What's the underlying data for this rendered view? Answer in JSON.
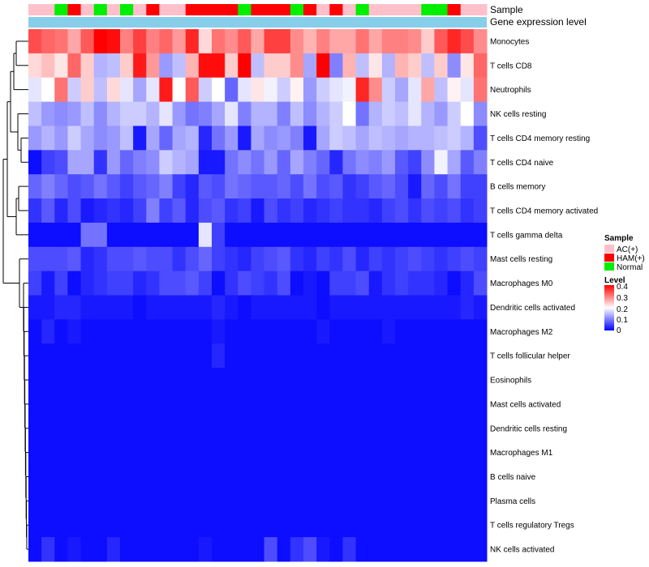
{
  "chart_data": {
    "type": "heatmap",
    "title": "",
    "annotation_labels": {
      "sample": "Sample",
      "gene": "Gene expression level"
    },
    "colors": {
      "low": "#0000ff",
      "mid": "#ffffff",
      "high": "#ff0000",
      "AC(+)": "#ffc0cb",
      "HAM(+)": "#ff0000",
      "Normal": "#00ee00",
      "gene_bar": "#87ceeb",
      "dendrogram": "#000000"
    },
    "legend": {
      "sample_title": "Sample",
      "sample_entries": [
        "AC(+)",
        "HAM(+)",
        "Normal"
      ],
      "level_title": "Level",
      "level_ticks": [
        "0.4",
        "0.3",
        "0.2",
        "0.1",
        "0"
      ],
      "level_range": [
        0,
        0.4
      ]
    },
    "rows": [
      "Monocytes",
      "T cells CD8",
      "Neutrophils",
      "NK cells resting",
      "T cells CD4 memory resting",
      "T cells CD4 naive",
      "B cells memory",
      "T cells CD4 memory activated",
      "T cells gamma delta",
      "Mast cells resting",
      "Macrophages M0",
      "Dendritic cells activated",
      "Macrophages M2",
      "T cells follicular helper",
      "Eosinophils",
      "Mast cells activated",
      "Dendritic cells resting",
      "Macrophages M1",
      "B cells naive",
      "Plasma cells",
      "T cells regulatory  Tregs",
      "NK cells activated"
    ],
    "samples": [
      "AC(+)",
      "AC(+)",
      "Normal",
      "HAM(+)",
      "AC(+)",
      "Normal",
      "AC(+)",
      "Normal",
      "AC(+)",
      "HAM(+)",
      "AC(+)",
      "AC(+)",
      "HAM(+)",
      "HAM(+)",
      "HAM(+)",
      "HAM(+)",
      "Normal",
      "HAM(+)",
      "HAM(+)",
      "HAM(+)",
      "Normal",
      "HAM(+)",
      "AC(+)",
      "HAM(+)",
      "AC(+)",
      "Normal",
      "AC(+)",
      "AC(+)",
      "AC(+)",
      "AC(+)",
      "Normal",
      "Normal",
      "HAM(+)",
      "AC(+)",
      "AC(+)"
    ],
    "values": [
      [
        0.34,
        0.32,
        0.31,
        0.27,
        0.33,
        0.4,
        0.39,
        0.3,
        0.35,
        0.3,
        0.32,
        0.28,
        0.37,
        0.23,
        0.31,
        0.29,
        0.33,
        0.27,
        0.35,
        0.35,
        0.29,
        0.26,
        0.3,
        0.27,
        0.27,
        0.31,
        0.27,
        0.3,
        0.3,
        0.29,
        0.24,
        0.33,
        0.37,
        0.34,
        0.29
      ],
      [
        0.23,
        0.25,
        0.22,
        0.32,
        0.24,
        0.14,
        0.15,
        0.24,
        0.38,
        0.28,
        0.12,
        0.15,
        0.26,
        0.39,
        0.39,
        0.24,
        0.4,
        0.15,
        0.24,
        0.24,
        0.29,
        0.13,
        0.4,
        0.1,
        0.26,
        0.15,
        0.22,
        0.14,
        0.26,
        0.24,
        0.15,
        0.24,
        0.11,
        0.22,
        0.32
      ],
      [
        0.18,
        0.2,
        0.31,
        0.16,
        0.24,
        0.15,
        0.23,
        0.18,
        0.13,
        0.18,
        0.38,
        0.2,
        0.33,
        0.16,
        0.2,
        0.08,
        0.18,
        0.22,
        0.19,
        0.16,
        0.21,
        0.12,
        0.16,
        0.18,
        0.19,
        0.37,
        0.29,
        0.16,
        0.13,
        0.18,
        0.27,
        0.15,
        0.21,
        0.18,
        0.31
      ],
      [
        0.15,
        0.12,
        0.11,
        0.12,
        0.15,
        0.11,
        0.14,
        0.16,
        0.16,
        0.14,
        0.18,
        0.12,
        0.09,
        0.1,
        0.13,
        0.18,
        0.1,
        0.14,
        0.14,
        0.1,
        0.15,
        0.11,
        0.14,
        0.16,
        0.2,
        0.09,
        0.14,
        0.16,
        0.15,
        0.18,
        0.14,
        0.12,
        0.16,
        0.2,
        0.11
      ],
      [
        0.12,
        0.14,
        0.12,
        0.16,
        0.13,
        0.11,
        0.12,
        0.15,
        0.02,
        0.13,
        0.08,
        0.13,
        0.14,
        0.03,
        0.09,
        0.12,
        0.02,
        0.13,
        0.11,
        0.12,
        0.1,
        0.02,
        0.13,
        0.16,
        0.15,
        0.13,
        0.15,
        0.14,
        0.13,
        0.14,
        0.14,
        0.15,
        0.16,
        0.14,
        0.06
      ],
      [
        0.01,
        0.05,
        0.06,
        0.13,
        0.13,
        0.04,
        0.12,
        0.08,
        0.1,
        0.11,
        0.16,
        0.14,
        0.13,
        0.02,
        0.02,
        0.09,
        0.11,
        0.09,
        0.12,
        0.08,
        0.13,
        0.1,
        0.08,
        0.03,
        0.09,
        0.11,
        0.1,
        0.12,
        0.07,
        0.05,
        0.11,
        0.19,
        0.13,
        0.07,
        0.1
      ],
      [
        0.08,
        0.1,
        0.08,
        0.06,
        0.07,
        0.09,
        0.07,
        0.05,
        0.07,
        0.08,
        0.1,
        0.05,
        0.03,
        0.07,
        0.06,
        0.09,
        0.08,
        0.07,
        0.07,
        0.08,
        0.06,
        0.09,
        0.06,
        0.07,
        0.04,
        0.05,
        0.07,
        0.08,
        0.06,
        0.02,
        0.08,
        0.06,
        0.09,
        0.05,
        0.05
      ],
      [
        0.04,
        0.07,
        0.03,
        0.06,
        0.02,
        0.03,
        0.04,
        0.03,
        0.05,
        0.1,
        0.05,
        0.07,
        0.03,
        0.06,
        0.07,
        0.04,
        0.05,
        0.02,
        0.06,
        0.04,
        0.05,
        0.03,
        0.04,
        0.05,
        0.04,
        0.04,
        0.03,
        0.05,
        0.06,
        0.04,
        0.06,
        0.05,
        0.06,
        0.04,
        0.05
      ],
      [
        0.01,
        0.01,
        0.01,
        0.01,
        0.09,
        0.09,
        0.01,
        0.01,
        0.01,
        0.01,
        0.01,
        0.01,
        0.01,
        0.18,
        0.05,
        0.01,
        0.01,
        0.01,
        0.01,
        0.01,
        0.01,
        0.01,
        0.01,
        0.01,
        0.01,
        0.01,
        0.01,
        0.01,
        0.01,
        0.01,
        0.01,
        0.01,
        0.01,
        0.01,
        0.01
      ],
      [
        0.06,
        0.06,
        0.06,
        0.07,
        0.03,
        0.04,
        0.06,
        0.06,
        0.07,
        0.06,
        0.06,
        0.04,
        0.06,
        0.08,
        0.05,
        0.04,
        0.03,
        0.05,
        0.06,
        0.07,
        0.04,
        0.03,
        0.05,
        0.04,
        0.06,
        0.03,
        0.05,
        0.04,
        0.05,
        0.06,
        0.05,
        0.04,
        0.05,
        0.06,
        0.05
      ],
      [
        0.05,
        0.02,
        0.05,
        0.01,
        0.03,
        0.04,
        0.05,
        0.05,
        0.03,
        0.04,
        0.06,
        0.06,
        0.07,
        0.05,
        0.01,
        0.04,
        0.06,
        0.05,
        0.04,
        0.06,
        0.01,
        0.02,
        0.01,
        0.05,
        0.05,
        0.06,
        0.02,
        0.04,
        0.05,
        0.04,
        0.04,
        0.03,
        0.01,
        0.03,
        0.06
      ],
      [
        0.02,
        0.02,
        0.03,
        0.03,
        0.02,
        0.02,
        0.02,
        0.02,
        0.01,
        0.02,
        0.02,
        0.02,
        0.02,
        0.02,
        0.03,
        0.02,
        0.01,
        0.02,
        0.02,
        0.02,
        0.02,
        0.02,
        0.01,
        0.02,
        0.02,
        0.02,
        0.02,
        0.02,
        0.02,
        0.02,
        0.02,
        0.02,
        0.02,
        0.03,
        0.02
      ],
      [
        0.01,
        0.03,
        0.01,
        0.02,
        0.01,
        0.01,
        0.01,
        0.01,
        0.01,
        0.01,
        0.01,
        0.01,
        0.01,
        0.01,
        0.02,
        0.01,
        0.01,
        0.01,
        0.01,
        0.01,
        0.01,
        0.01,
        0.02,
        0.01,
        0.01,
        0.01,
        0.01,
        0.02,
        0.01,
        0.01,
        0.01,
        0.01,
        0.01,
        0.01,
        0.01
      ],
      [
        0.01,
        0.01,
        0.01,
        0.01,
        0.01,
        0.01,
        0.01,
        0.01,
        0.01,
        0.01,
        0.01,
        0.01,
        0.01,
        0.01,
        0.03,
        0.01,
        0.01,
        0.01,
        0.01,
        0.01,
        0.01,
        0.01,
        0.01,
        0.01,
        0.01,
        0.01,
        0.01,
        0.01,
        0.01,
        0.01,
        0.01,
        0.01,
        0.01,
        0.01,
        0.01
      ],
      [
        0.01,
        0.01,
        0.01,
        0.01,
        0.01,
        0.01,
        0.01,
        0.01,
        0.01,
        0.01,
        0.01,
        0.01,
        0.01,
        0.01,
        0.01,
        0.01,
        0.01,
        0.01,
        0.01,
        0.01,
        0.01,
        0.01,
        0.01,
        0.01,
        0.01,
        0.01,
        0.01,
        0.01,
        0.01,
        0.01,
        0.01,
        0.01,
        0.01,
        0.01,
        0.01
      ],
      [
        0.01,
        0.01,
        0.01,
        0.01,
        0.01,
        0.01,
        0.01,
        0.01,
        0.01,
        0.01,
        0.01,
        0.01,
        0.01,
        0.01,
        0.01,
        0.01,
        0.01,
        0.01,
        0.01,
        0.01,
        0.01,
        0.01,
        0.01,
        0.01,
        0.01,
        0.01,
        0.01,
        0.01,
        0.01,
        0.01,
        0.01,
        0.01,
        0.01,
        0.01,
        0.01
      ],
      [
        0.01,
        0.01,
        0.01,
        0.01,
        0.01,
        0.01,
        0.01,
        0.01,
        0.01,
        0.01,
        0.01,
        0.01,
        0.01,
        0.01,
        0.01,
        0.01,
        0.01,
        0.01,
        0.01,
        0.01,
        0.01,
        0.01,
        0.01,
        0.01,
        0.01,
        0.01,
        0.01,
        0.01,
        0.01,
        0.01,
        0.01,
        0.01,
        0.01,
        0.01,
        0.01
      ],
      [
        0.01,
        0.01,
        0.01,
        0.01,
        0.01,
        0.01,
        0.01,
        0.01,
        0.01,
        0.01,
        0.01,
        0.01,
        0.01,
        0.01,
        0.01,
        0.01,
        0.01,
        0.01,
        0.01,
        0.01,
        0.01,
        0.01,
        0.01,
        0.01,
        0.01,
        0.01,
        0.01,
        0.01,
        0.01,
        0.01,
        0.01,
        0.01,
        0.01,
        0.01,
        0.01
      ],
      [
        0.01,
        0.01,
        0.01,
        0.01,
        0.01,
        0.01,
        0.01,
        0.01,
        0.01,
        0.01,
        0.01,
        0.01,
        0.01,
        0.01,
        0.01,
        0.01,
        0.01,
        0.01,
        0.01,
        0.01,
        0.01,
        0.01,
        0.01,
        0.01,
        0.01,
        0.01,
        0.01,
        0.01,
        0.01,
        0.01,
        0.01,
        0.01,
        0.01,
        0.01,
        0.01
      ],
      [
        0.01,
        0.01,
        0.01,
        0.01,
        0.01,
        0.01,
        0.01,
        0.01,
        0.01,
        0.01,
        0.01,
        0.01,
        0.01,
        0.01,
        0.01,
        0.01,
        0.01,
        0.01,
        0.01,
        0.01,
        0.01,
        0.01,
        0.01,
        0.01,
        0.01,
        0.01,
        0.01,
        0.01,
        0.01,
        0.01,
        0.01,
        0.01,
        0.01,
        0.01,
        0.01
      ],
      [
        0.01,
        0.01,
        0.01,
        0.01,
        0.01,
        0.01,
        0.01,
        0.01,
        0.01,
        0.01,
        0.01,
        0.01,
        0.01,
        0.01,
        0.01,
        0.01,
        0.01,
        0.01,
        0.01,
        0.01,
        0.01,
        0.01,
        0.01,
        0.01,
        0.01,
        0.01,
        0.01,
        0.01,
        0.01,
        0.01,
        0.01,
        0.01,
        0.01,
        0.01,
        0.01
      ],
      [
        0.01,
        0.04,
        0.01,
        0.02,
        0.01,
        0.01,
        0.03,
        0.01,
        0.01,
        0.01,
        0.01,
        0.01,
        0.01,
        0.02,
        0.01,
        0.01,
        0.01,
        0.01,
        0.06,
        0.01,
        0.04,
        0.06,
        0.02,
        0.01,
        0.04,
        0.01,
        0.01,
        0.01,
        0.01,
        0.01,
        0.01,
        0.01,
        0.01,
        0.01,
        0.01
      ]
    ]
  }
}
